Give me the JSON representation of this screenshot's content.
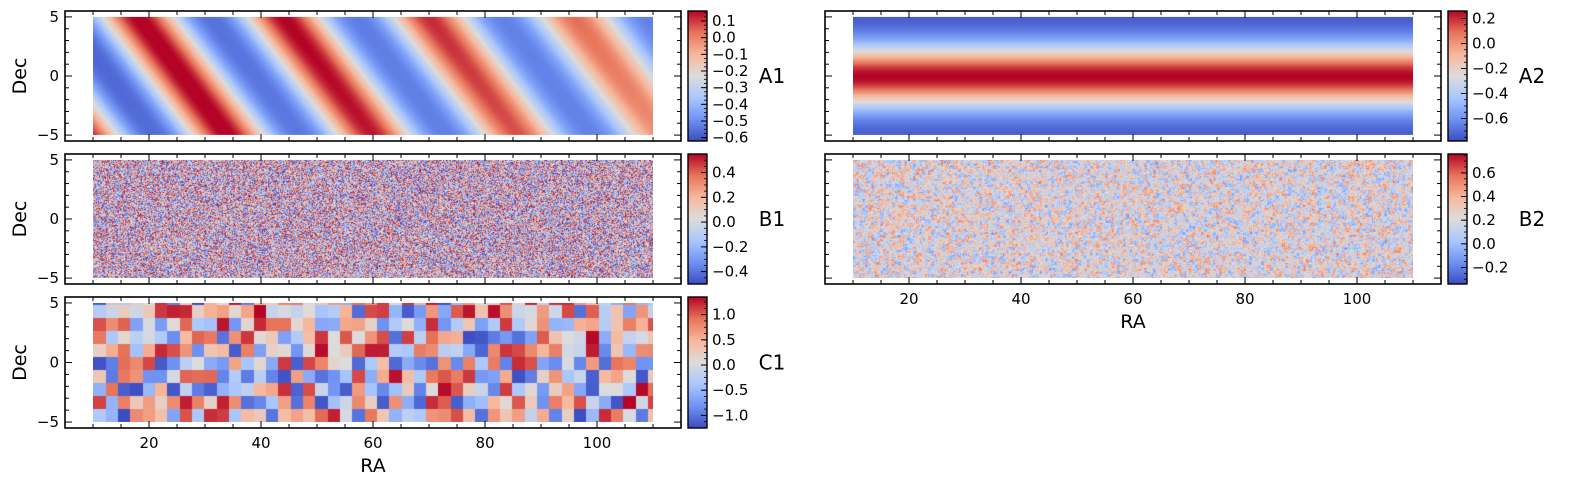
{
  "figure": {
    "description_axes": "RA vs Dec colormapped field panels",
    "colormap": "coolwarm",
    "colormap_stops": [
      "#3b4cc0",
      "#6f92f3",
      "#aac7fd",
      "#dddcdc",
      "#f7b89c",
      "#e7745b",
      "#b40426"
    ]
  },
  "chart_data": [
    {
      "id": "A1",
      "type": "heatmap",
      "title": "A1",
      "xlabel": "",
      "ylabel": "Dec",
      "colorbar_label": "A1",
      "xlim": [
        5,
        115
      ],
      "ylim": [
        -5.5,
        5.5
      ],
      "x_ticks": [
        20,
        40,
        60,
        80,
        100
      ],
      "y_ticks": [
        -5,
        0,
        5
      ],
      "y_tick_labels": [
        "−5",
        "0",
        "5"
      ],
      "data_range_x": [
        10,
        110
      ],
      "data_range_y": [
        -5,
        5
      ],
      "pattern": "diagonal_waves",
      "cbar_range": [
        -0.62,
        0.16
      ],
      "cbar_ticks": [
        0.1,
        0.0,
        -0.1,
        -0.2,
        -0.3,
        -0.4,
        -0.5,
        -0.6
      ],
      "cbar_tick_labels": [
        "0.1",
        "0.0",
        "−0.1",
        "−0.2",
        "−0.3",
        "−0.4",
        "−0.5",
        "−0.6"
      ]
    },
    {
      "id": "A2",
      "type": "heatmap",
      "title": "A2",
      "xlabel": "",
      "ylabel": "",
      "colorbar_label": "A2",
      "xlim": [
        5,
        115
      ],
      "ylim": [
        -5.5,
        5.5
      ],
      "x_ticks": [
        20,
        40,
        60,
        80,
        100
      ],
      "y_ticks": [
        -5,
        0,
        5
      ],
      "data_range_x": [
        10,
        110
      ],
      "data_range_y": [
        -5,
        5
      ],
      "pattern": "horizontal_band",
      "cbar_range": [
        -0.78,
        0.26
      ],
      "cbar_ticks": [
        0.2,
        0.0,
        -0.2,
        -0.4,
        -0.6
      ],
      "cbar_tick_labels": [
        "0.2",
        "0.0",
        "−0.2",
        "−0.4",
        "−0.6"
      ]
    },
    {
      "id": "B1",
      "type": "heatmap",
      "title": "B1",
      "xlabel": "",
      "ylabel": "Dec",
      "colorbar_label": "B1",
      "xlim": [
        5,
        115
      ],
      "ylim": [
        -5.5,
        5.5
      ],
      "x_ticks": [
        20,
        40,
        60,
        80,
        100
      ],
      "y_ticks": [
        -5,
        0,
        5
      ],
      "y_tick_labels": [
        "−5",
        "0",
        "5"
      ],
      "data_range_x": [
        10,
        110
      ],
      "data_range_y": [
        -5,
        5
      ],
      "pattern": "fine_noise",
      "cbar_range": [
        -0.5,
        0.55
      ],
      "cbar_ticks": [
        0.4,
        0.2,
        0.0,
        -0.2,
        -0.4
      ],
      "cbar_tick_labels": [
        "0.4",
        "0.2",
        "0.0",
        "−0.2",
        "−0.4"
      ]
    },
    {
      "id": "B2",
      "type": "heatmap",
      "title": "B2",
      "xlabel": "RA",
      "ylabel": "",
      "colorbar_label": "B2",
      "xlim": [
        5,
        115
      ],
      "ylim": [
        -5.5,
        5.5
      ],
      "x_ticks": [
        20,
        40,
        60,
        80,
        100
      ],
      "y_ticks": [
        -5,
        0,
        5
      ],
      "x_tick_labels": [
        "20",
        "40",
        "60",
        "80",
        "100"
      ],
      "data_range_x": [
        10,
        110
      ],
      "data_range_y": [
        -5,
        5
      ],
      "pattern": "cellular_noise",
      "cbar_range": [
        -0.34,
        0.76
      ],
      "cbar_ticks": [
        0.6,
        0.4,
        0.2,
        0.0,
        -0.2
      ],
      "cbar_tick_labels": [
        "0.6",
        "0.4",
        "0.2",
        "0.0",
        "−0.2"
      ]
    },
    {
      "id": "C1",
      "type": "heatmap",
      "title": "C1",
      "xlabel": "RA",
      "ylabel": "Dec",
      "colorbar_label": "C1",
      "xlim": [
        5,
        115
      ],
      "ylim": [
        -5.5,
        5.5
      ],
      "x_ticks": [
        20,
        40,
        60,
        80,
        100
      ],
      "y_ticks": [
        -5,
        0,
        5
      ],
      "y_tick_labels": [
        "−5",
        "0",
        "5"
      ],
      "x_tick_labels": [
        "20",
        "40",
        "60",
        "80",
        "100"
      ],
      "data_range_x": [
        10,
        110
      ],
      "data_range_y": [
        -5,
        5
      ],
      "pattern": "blocks",
      "cbar_range": [
        -1.25,
        1.35
      ],
      "cbar_ticks": [
        1.0,
        0.5,
        0.0,
        -0.5,
        -1.0
      ],
      "cbar_tick_labels": [
        "1.0",
        "0.5",
        "0.0",
        "−0.5",
        "−1.0"
      ]
    }
  ]
}
